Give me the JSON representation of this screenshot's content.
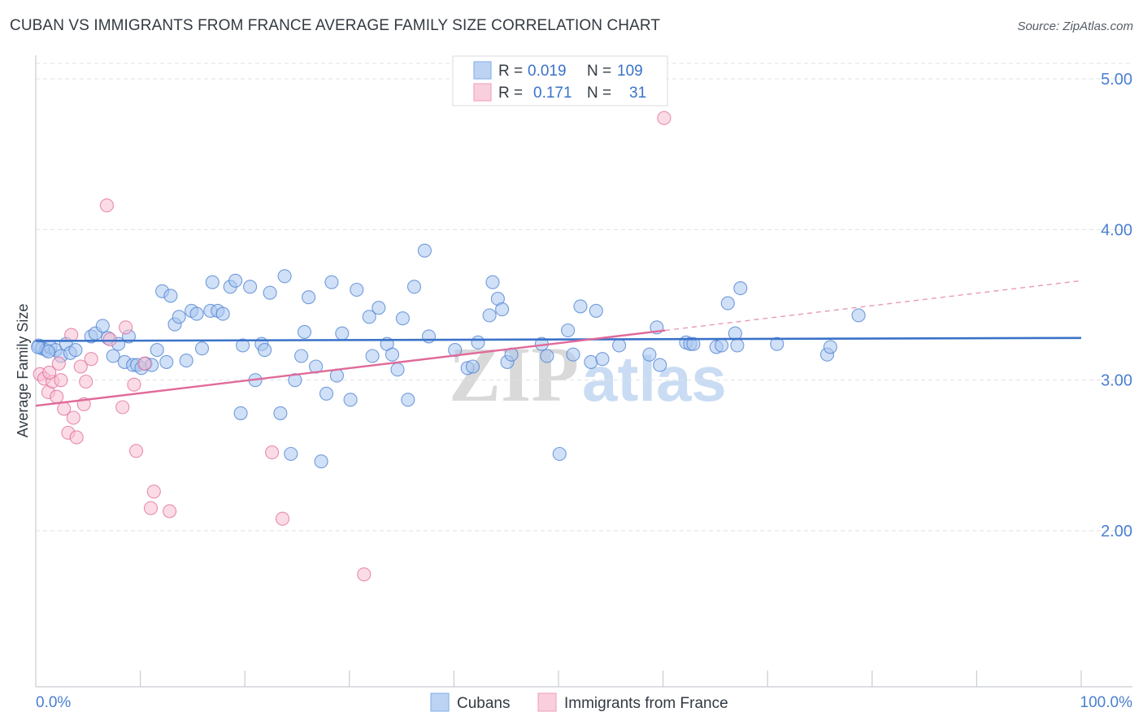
{
  "title": "CUBAN VS IMMIGRANTS FROM FRANCE AVERAGE FAMILY SIZE CORRELATION CHART",
  "source": "Source: ZipAtlas.com",
  "watermark": {
    "zip": "ZIP",
    "atlas": "atlas"
  },
  "legend_top": [
    {
      "r_label": "R =",
      "r_value": "0.019",
      "n_label": "N =",
      "n_value": "109",
      "color": "#8fb4ea"
    },
    {
      "r_label": "R =",
      "r_value": "0.171",
      "n_label": "N =",
      "n_value": "31",
      "color": "#f2a7c0"
    }
  ],
  "legend_bottom": [
    {
      "label": "Cubans",
      "color": "#8fb4ea"
    },
    {
      "label": "Immigrants from France",
      "color": "#f2a7c0"
    }
  ],
  "chart_data": {
    "type": "scatter",
    "title": "CUBAN VS IMMIGRANTS FROM FRANCE AVERAGE FAMILY SIZE CORRELATION CHART",
    "xlabel": "",
    "ylabel": "Average Family Size",
    "xlim": [
      0,
      100
    ],
    "ylim": [
      1.0,
      5.1
    ],
    "x_tick_labels": [
      "0.0%",
      "100.0%"
    ],
    "y_ticks": [
      2.0,
      3.0,
      4.0,
      5.0
    ],
    "y_tick_labels": [
      "2.00",
      "3.00",
      "4.00",
      "5.00"
    ],
    "grid": "horizontal dashed",
    "series": [
      {
        "name": "Cubans",
        "color": "#4a7fd0",
        "fill": "#a9c6f0",
        "r": 0.019,
        "n": 109,
        "trend": {
          "x": [
            0,
            100
          ],
          "y": [
            3.26,
            3.28
          ]
        },
        "points": [
          [
            0.3,
            3.23
          ],
          [
            0.6,
            3.21
          ],
          [
            1,
            3.2
          ],
          [
            1.4,
            3.22
          ],
          [
            1.9,
            3.2
          ],
          [
            2.4,
            3.16
          ],
          [
            2.9,
            3.24
          ],
          [
            3.3,
            3.18
          ],
          [
            3.8,
            3.2
          ],
          [
            5.3,
            3.29
          ],
          [
            5.7,
            3.31
          ],
          [
            6.4,
            3.36
          ],
          [
            6.9,
            3.28
          ],
          [
            7.4,
            3.16
          ],
          [
            7.9,
            3.24
          ],
          [
            8.5,
            3.12
          ],
          [
            8.9,
            3.29
          ],
          [
            9.3,
            3.1
          ],
          [
            9.7,
            3.1
          ],
          [
            10.1,
            3.08
          ],
          [
            10.5,
            3.11
          ],
          [
            11.1,
            3.1
          ],
          [
            11.6,
            3.2
          ],
          [
            12.1,
            3.59
          ],
          [
            12.5,
            3.12
          ],
          [
            12.9,
            3.56
          ],
          [
            13.3,
            3.37
          ],
          [
            13.7,
            3.42
          ],
          [
            14.4,
            3.13
          ],
          [
            14.9,
            3.46
          ],
          [
            15.4,
            3.44
          ],
          [
            15.9,
            3.21
          ],
          [
            16.7,
            3.46
          ],
          [
            16.9,
            3.65
          ],
          [
            17.4,
            3.46
          ],
          [
            17.9,
            3.44
          ],
          [
            18.6,
            3.62
          ],
          [
            19.1,
            3.66
          ],
          [
            19.6,
            2.78
          ],
          [
            19.8,
            3.23
          ],
          [
            20.5,
            3.62
          ],
          [
            21,
            3.0
          ],
          [
            21.6,
            3.24
          ],
          [
            21.9,
            3.2
          ],
          [
            22.4,
            3.58
          ],
          [
            23.4,
            2.78
          ],
          [
            23.8,
            3.69
          ],
          [
            24.4,
            2.51
          ],
          [
            24.8,
            3.0
          ],
          [
            25.4,
            3.16
          ],
          [
            25.7,
            3.32
          ],
          [
            26.1,
            3.55
          ],
          [
            26.8,
            3.09
          ],
          [
            27.3,
            2.46
          ],
          [
            27.8,
            2.91
          ],
          [
            28.3,
            3.65
          ],
          [
            28.8,
            3.03
          ],
          [
            29.3,
            3.31
          ],
          [
            30.1,
            2.87
          ],
          [
            30.7,
            3.6
          ],
          [
            31.9,
            3.42
          ],
          [
            32.2,
            3.16
          ],
          [
            32.8,
            3.48
          ],
          [
            33.6,
            3.24
          ],
          [
            34.1,
            3.17
          ],
          [
            34.6,
            3.07
          ],
          [
            35.1,
            3.41
          ],
          [
            35.6,
            2.87
          ],
          [
            36.2,
            3.62
          ],
          [
            37.2,
            3.86
          ],
          [
            37.6,
            3.29
          ],
          [
            40.1,
            3.2
          ],
          [
            41.3,
            3.08
          ],
          [
            41.8,
            3.09
          ],
          [
            42.3,
            3.25
          ],
          [
            43.4,
            3.43
          ],
          [
            43.7,
            3.65
          ],
          [
            44.2,
            3.54
          ],
          [
            44.6,
            3.47
          ],
          [
            45.1,
            3.12
          ],
          [
            45.5,
            3.17
          ],
          [
            48.4,
            3.24
          ],
          [
            48.9,
            3.16
          ],
          [
            50.1,
            2.51
          ],
          [
            50.9,
            3.33
          ],
          [
            51.4,
            3.17
          ],
          [
            52.1,
            3.49
          ],
          [
            53.1,
            3.12
          ],
          [
            53.6,
            3.46
          ],
          [
            54.2,
            3.14
          ],
          [
            55.8,
            3.23
          ],
          [
            58.7,
            3.17
          ],
          [
            59.4,
            3.35
          ],
          [
            59.7,
            3.1
          ],
          [
            62.2,
            3.25
          ],
          [
            62.6,
            3.24
          ],
          [
            62.9,
            3.24
          ],
          [
            65.1,
            3.22
          ],
          [
            65.6,
            3.23
          ],
          [
            66.2,
            3.51
          ],
          [
            66.9,
            3.31
          ],
          [
            67.1,
            3.23
          ],
          [
            67.4,
            3.61
          ],
          [
            70.9,
            3.24
          ],
          [
            75.7,
            3.17
          ],
          [
            76,
            3.22
          ],
          [
            78.7,
            3.43
          ],
          [
            0.2,
            3.22
          ],
          [
            1.2,
            3.19
          ]
        ]
      },
      {
        "name": "Immigrants from France",
        "color": "#e06a9a",
        "fill": "#f7bfd2",
        "r": 0.171,
        "n": 31,
        "trend": {
          "x": [
            0,
            60.2
          ],
          "y": [
            2.83,
            3.33
          ]
        },
        "trend_dashed": {
          "x": [
            60.2,
            100
          ],
          "y": [
            3.33,
            3.66
          ]
        },
        "points": [
          [
            0.4,
            3.04
          ],
          [
            0.8,
            3.01
          ],
          [
            1.2,
            2.92
          ],
          [
            1.6,
            2.99
          ],
          [
            2,
            2.89
          ],
          [
            2.4,
            3.0
          ],
          [
            2.7,
            2.81
          ],
          [
            3.1,
            2.65
          ],
          [
            3.4,
            3.3
          ],
          [
            3.6,
            2.75
          ],
          [
            3.9,
            2.62
          ],
          [
            4.3,
            3.09
          ],
          [
            4.6,
            2.84
          ],
          [
            4.8,
            2.99
          ],
          [
            5.3,
            3.14
          ],
          [
            6.8,
            4.16
          ],
          [
            7.1,
            3.27
          ],
          [
            8.3,
            2.82
          ],
          [
            8.6,
            3.35
          ],
          [
            9.4,
            2.97
          ],
          [
            9.6,
            2.53
          ],
          [
            10.4,
            3.11
          ],
          [
            11,
            2.15
          ],
          [
            11.3,
            2.26
          ],
          [
            12.8,
            2.13
          ],
          [
            22.6,
            2.52
          ],
          [
            23.6,
            2.08
          ],
          [
            31.4,
            1.71
          ],
          [
            60.1,
            4.74
          ],
          [
            1.3,
            3.05
          ],
          [
            2.2,
            3.11
          ]
        ]
      }
    ]
  }
}
